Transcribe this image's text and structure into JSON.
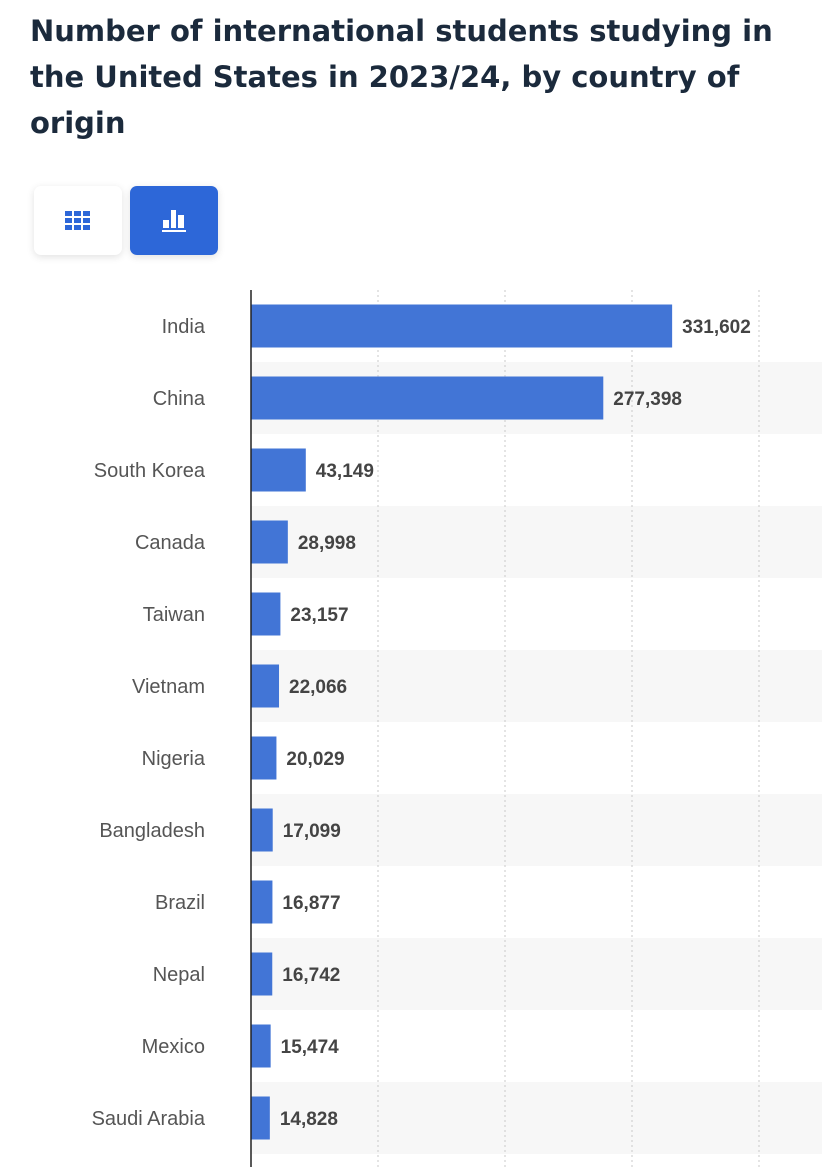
{
  "header": {
    "title": "Number of international students studying in the United States in 2023/24, by country of origin"
  },
  "toolbar": {
    "table_view_icon": "grid-icon",
    "chart_view_icon": "bar-chart-icon",
    "active": "chart"
  },
  "colors": {
    "bar": "#4275d6",
    "accent": "#2d67d8",
    "stripe": "#f7f7f7"
  },
  "chart_data": {
    "type": "bar",
    "orientation": "horizontal",
    "title": "Number of international students studying in the United States in 2023/24, by country of origin",
    "categories": [
      "India",
      "China",
      "South Korea",
      "Canada",
      "Taiwan",
      "Vietnam",
      "Nigeria",
      "Bangladesh",
      "Brazil",
      "Nepal",
      "Mexico",
      "Saudi Arabia"
    ],
    "values": [
      331602,
      277398,
      43149,
      28998,
      23157,
      22066,
      20029,
      17099,
      16877,
      16742,
      15474,
      14828
    ],
    "value_labels": [
      "331,602",
      "277,398",
      "43,149",
      "28,998",
      "23,157",
      "22,066",
      "20,029",
      "17,099",
      "16,877",
      "16,742",
      "15,474",
      "14,828"
    ],
    "xlim": [
      0,
      400000
    ],
    "gridlines": [
      100000,
      200000,
      300000,
      400000
    ],
    "grid": true,
    "xlabel": "",
    "ylabel": ""
  }
}
